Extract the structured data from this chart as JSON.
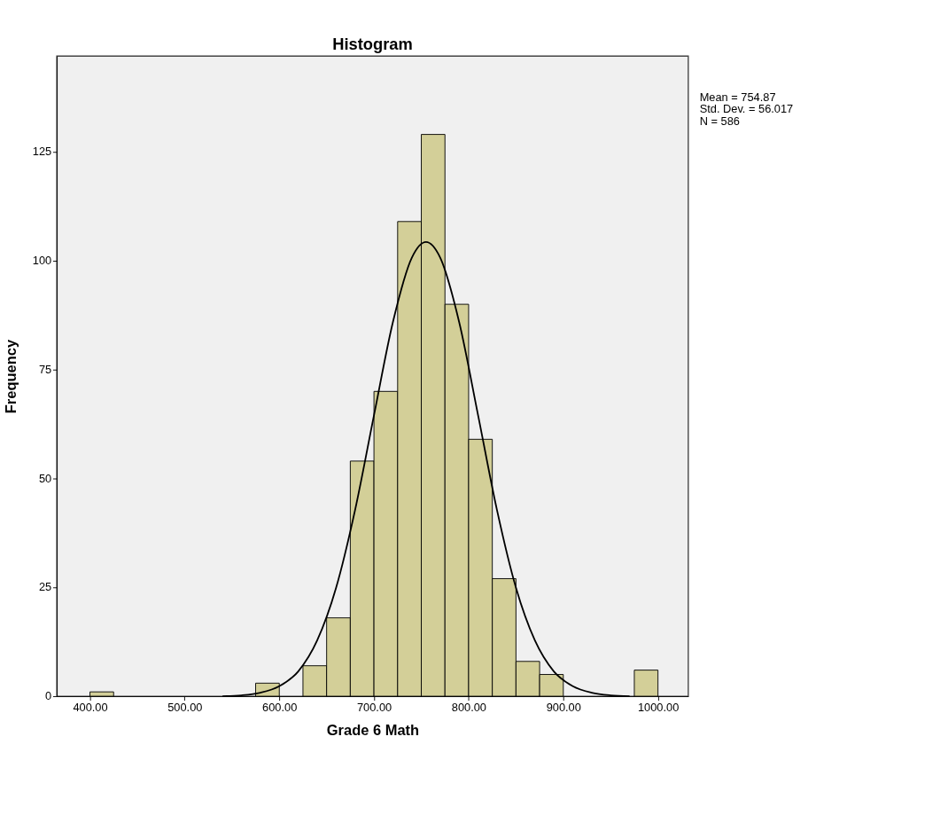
{
  "chart_data": {
    "type": "histogram",
    "title": "Histogram",
    "xlabel": "Grade 6 Math",
    "ylabel": "Frequency",
    "bins": [
      400,
      425,
      450,
      475,
      500,
      525,
      550,
      575,
      600,
      625,
      650,
      675,
      700,
      725,
      750,
      775,
      800,
      825,
      850,
      875,
      900,
      925,
      950,
      975,
      1000
    ],
    "values": [
      1,
      0,
      0,
      0,
      0,
      0,
      0,
      3,
      0,
      7,
      18,
      54,
      70,
      109,
      129,
      90,
      59,
      27,
      8,
      5,
      0,
      0,
      0,
      6
    ],
    "color": "#d3cf98",
    "series": [
      {
        "type": "line",
        "color": "#000000",
        "x": [
          540,
          560,
          580,
          600,
          620,
          640,
          660,
          680,
          700,
          720,
          740,
          755,
          770,
          790,
          810,
          830,
          850,
          870,
          890,
          910,
          930,
          950,
          970
        ],
        "values": [
          0,
          0.2,
          0.8,
          2.3,
          5.7,
          12.8,
          24.9,
          42.7,
          64.5,
          85.9,
          100.7,
          104.3,
          100.7,
          85.9,
          64.5,
          42.7,
          24.9,
          12.8,
          5.7,
          2.3,
          0.8,
          0.2,
          0
        ]
      }
    ],
    "xlim": [
      365,
      1032
    ],
    "ylim": [
      0,
      147
    ],
    "xticks": [
      {
        "value": 400,
        "label": "400.00"
      },
      {
        "value": 500,
        "label": "500.00"
      },
      {
        "value": 600,
        "label": "600.00"
      },
      {
        "value": 700,
        "label": "700.00"
      },
      {
        "value": 800,
        "label": "800.00"
      },
      {
        "value": 900,
        "label": "900.00"
      },
      {
        "value": 1000,
        "label": "1000.00"
      }
    ],
    "yticks": [
      0,
      25,
      50,
      75,
      100,
      125
    ],
    "grid": false,
    "annotations": [
      "Mean = 754.87",
      "Std. Dev. = 56.017",
      "N = 586"
    ]
  }
}
